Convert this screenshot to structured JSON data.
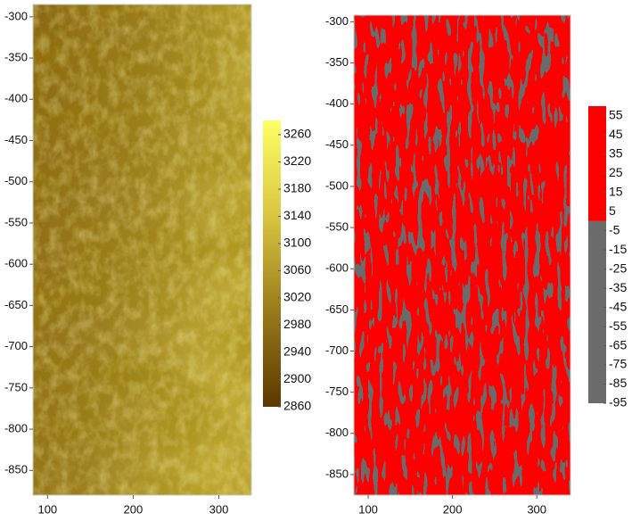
{
  "chart_data": [
    {
      "type": "heatmap",
      "xlim": [
        83,
        338
      ],
      "ylim": [
        -880,
        -285
      ],
      "xticks": [
        100,
        200,
        300
      ],
      "yticks": [
        -300,
        -350,
        -400,
        -450,
        -500,
        -550,
        -600,
        -650,
        -700,
        -750,
        -800,
        -850
      ],
      "colorbar": {
        "kind": "gradient",
        "lim": [
          2860,
          3281
        ],
        "ticks": [
          3260,
          3220,
          3180,
          3140,
          3100,
          3060,
          3020,
          2980,
          2940,
          2900,
          2860
        ],
        "colors": [
          "#5e3600",
          "#9a7a1a",
          "#d8c640",
          "#ffff66"
        ]
      }
    },
    {
      "type": "binary",
      "xlim": [
        83,
        340
      ],
      "ylim": [
        -875,
        -292
      ],
      "xticks": [
        100,
        200,
        300
      ],
      "yticks": [
        -300,
        -350,
        -400,
        -450,
        -500,
        -550,
        -600,
        -650,
        -700,
        -750,
        -800,
        -850
      ],
      "colorbar": {
        "kind": "steps",
        "lim": [
          -95,
          60
        ],
        "breaks": [
          0
        ],
        "ticks": [
          55,
          45,
          35,
          25,
          15,
          5,
          -5,
          -15,
          -25,
          -35,
          -45,
          -55,
          -65,
          -75,
          -85,
          -95
        ],
        "colors": [
          "#6b6b6b",
          "#ff0000"
        ]
      }
    }
  ]
}
